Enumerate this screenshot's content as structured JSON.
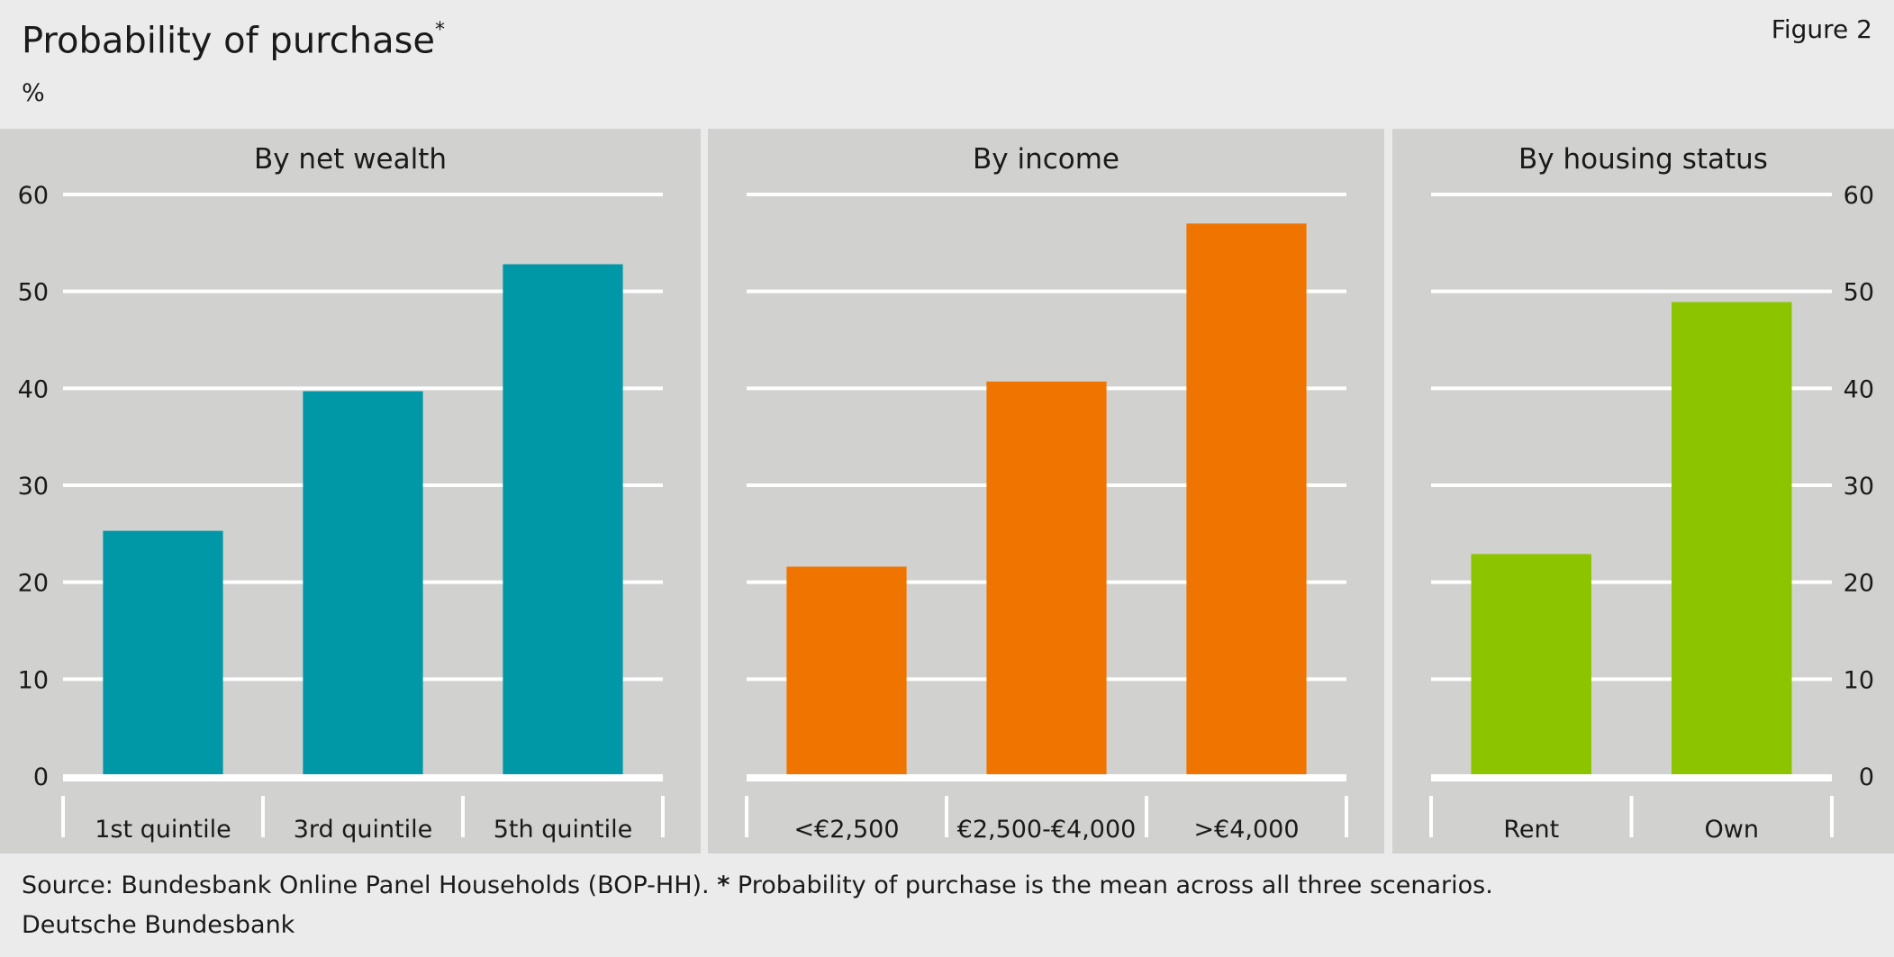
{
  "header": {
    "title": "Probability of purchase",
    "title_mark": "*",
    "figure_label": "Figure 2",
    "unit": "%"
  },
  "footer": {
    "source_prefix": "Source: Bundesbank Online Panel Households (BOP-HH).",
    "source_mark": "*",
    "source_note": "Probability of purchase is the mean across all three scenarios.",
    "publisher": "Deutsche Bundesbank"
  },
  "chart_data": [
    {
      "type": "bar",
      "title": "By net wealth",
      "categories": [
        "1st quintile",
        "3rd quintile",
        "5th quintile"
      ],
      "values": [
        25.3,
        39.7,
        52.8
      ],
      "ylim": [
        0,
        60
      ],
      "yticks": [
        0,
        10,
        20,
        30,
        40,
        50,
        60
      ],
      "ytick_side": "left",
      "color": "#0097a7",
      "grid": true
    },
    {
      "type": "bar",
      "title": "By income",
      "categories": [
        "<€2,500",
        "€2,500-€4,000",
        ">€4,000"
      ],
      "values": [
        21.6,
        40.7,
        57.0
      ],
      "ylim": [
        0,
        60
      ],
      "yticks": [],
      "ytick_side": "none",
      "color": "#ef7400",
      "grid": true
    },
    {
      "type": "bar",
      "title": "By housing status",
      "categories": [
        "Rent",
        "Own"
      ],
      "values": [
        22.9,
        48.9
      ],
      "ylim": [
        0,
        60
      ],
      "yticks": [
        0,
        10,
        20,
        30,
        40,
        50,
        60
      ],
      "ytick_side": "right",
      "color": "#8dc400",
      "grid": true
    }
  ]
}
